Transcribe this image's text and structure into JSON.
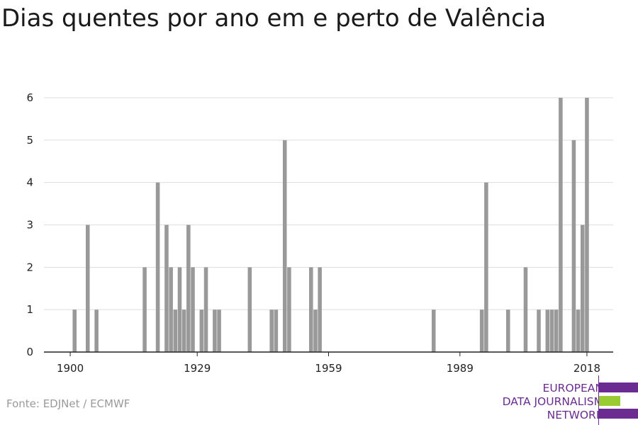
{
  "title": "Dias quentes por ano em e perto de Valência",
  "source": "Fonte: EDJNet / ECMWF",
  "logo": {
    "lines": [
      "EUROPEAN",
      "DATA JOURNALISM",
      "NETWORK"
    ],
    "colors": {
      "purple": "#6a2c91",
      "green": "#99cc33"
    }
  },
  "chart_data": {
    "type": "bar",
    "title": "Dias quentes por ano em e perto de Valência",
    "xlabel": "",
    "ylabel": "",
    "x_ticks": [
      1900,
      1929,
      1959,
      1989,
      2018
    ],
    "y_ticks": [
      0,
      1,
      2,
      3,
      4,
      5,
      6
    ],
    "xlim": [
      1894,
      2024
    ],
    "ylim": [
      0,
      6
    ],
    "grid": true,
    "bar_color": "#999999",
    "points": [
      {
        "x": 1901,
        "y": 1
      },
      {
        "x": 1904,
        "y": 3
      },
      {
        "x": 1906,
        "y": 1
      },
      {
        "x": 1917,
        "y": 2
      },
      {
        "x": 1920,
        "y": 4
      },
      {
        "x": 1922,
        "y": 3
      },
      {
        "x": 1923,
        "y": 2
      },
      {
        "x": 1924,
        "y": 1
      },
      {
        "x": 1925,
        "y": 2
      },
      {
        "x": 1926,
        "y": 1
      },
      {
        "x": 1927,
        "y": 3
      },
      {
        "x": 1928,
        "y": 2
      },
      {
        "x": 1930,
        "y": 1
      },
      {
        "x": 1931,
        "y": 2
      },
      {
        "x": 1933,
        "y": 1
      },
      {
        "x": 1934,
        "y": 1
      },
      {
        "x": 1941,
        "y": 2
      },
      {
        "x": 1946,
        "y": 1
      },
      {
        "x": 1947,
        "y": 1
      },
      {
        "x": 1949,
        "y": 5
      },
      {
        "x": 1950,
        "y": 2
      },
      {
        "x": 1955,
        "y": 2
      },
      {
        "x": 1956,
        "y": 1
      },
      {
        "x": 1957,
        "y": 2
      },
      {
        "x": 1983,
        "y": 1
      },
      {
        "x": 1994,
        "y": 1
      },
      {
        "x": 1995,
        "y": 4
      },
      {
        "x": 2000,
        "y": 1
      },
      {
        "x": 2004,
        "y": 2
      },
      {
        "x": 2007,
        "y": 1
      },
      {
        "x": 2009,
        "y": 1
      },
      {
        "x": 2010,
        "y": 1
      },
      {
        "x": 2011,
        "y": 1
      },
      {
        "x": 2012,
        "y": 6
      },
      {
        "x": 2015,
        "y": 5
      },
      {
        "x": 2016,
        "y": 1
      },
      {
        "x": 2017,
        "y": 3
      },
      {
        "x": 2018,
        "y": 6
      }
    ]
  }
}
